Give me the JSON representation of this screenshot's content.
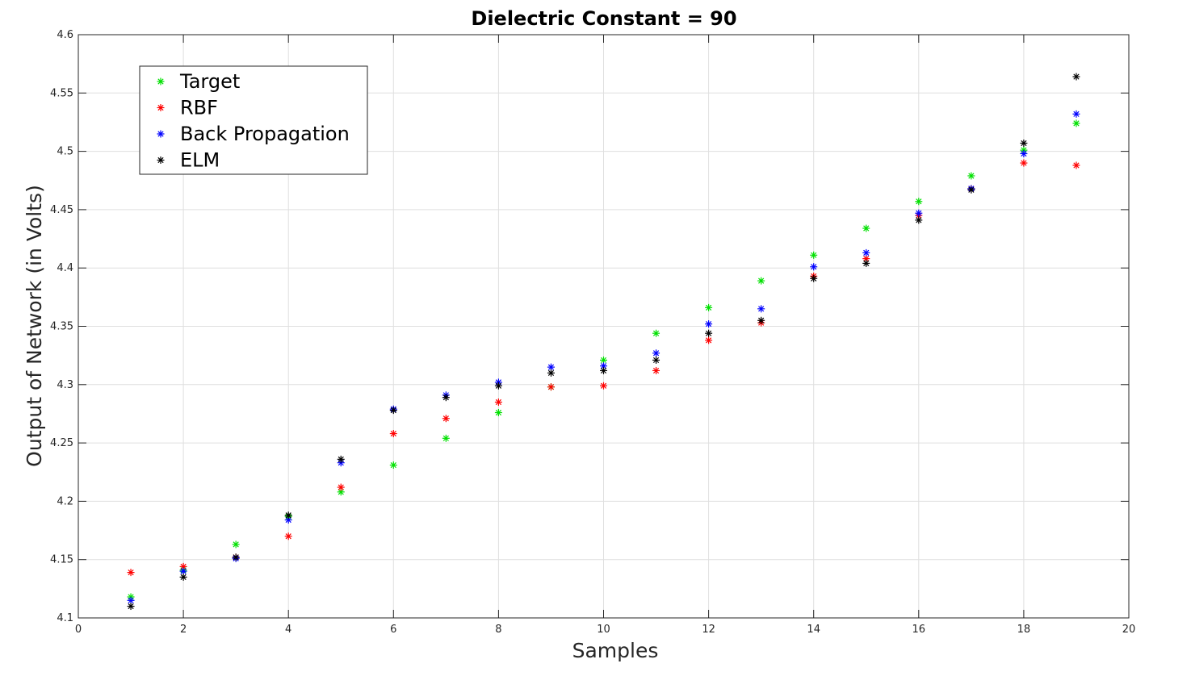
{
  "chart_data": {
    "type": "scatter",
    "title": "Dielectric Constant = 90",
    "xlabel": "Samples",
    "ylabel": "Output of Network (in Volts)",
    "xlim": [
      0,
      20
    ],
    "ylim": [
      4.1,
      4.6
    ],
    "xticks": [
      0,
      2,
      4,
      6,
      8,
      10,
      12,
      14,
      16,
      18,
      20
    ],
    "yticks": [
      4.1,
      4.15,
      4.2,
      4.25,
      4.3,
      4.35,
      4.4,
      4.45,
      4.5,
      4.55,
      4.6
    ],
    "xtick_labels": [
      "0",
      "2",
      "4",
      "6",
      "8",
      "10",
      "12",
      "14",
      "16",
      "18",
      "20"
    ],
    "ytick_labels": [
      "4.1",
      "4.15",
      "4.2",
      "4.25",
      "4.3",
      "4.35",
      "4.4",
      "4.45",
      "4.5",
      "4.55",
      "4.6"
    ],
    "grid": true,
    "legend_position": "top-left",
    "marker": "*",
    "x": [
      1,
      2,
      3,
      4,
      5,
      6,
      7,
      8,
      9,
      10,
      11,
      12,
      13,
      14,
      15,
      16,
      17,
      18,
      19
    ],
    "series": [
      {
        "name": "Target",
        "color": "#00e000",
        "values": [
          4.118,
          4.141,
          4.163,
          4.187,
          4.208,
          4.231,
          4.254,
          4.276,
          4.298,
          4.321,
          4.344,
          4.366,
          4.389,
          4.411,
          4.434,
          4.457,
          4.479,
          4.501,
          4.524
        ]
      },
      {
        "name": "RBF",
        "color": "#ff0000",
        "values": [
          4.139,
          4.144,
          4.152,
          4.17,
          4.212,
          4.258,
          4.271,
          4.285,
          4.298,
          4.299,
          4.312,
          4.338,
          4.353,
          4.393,
          4.408,
          4.445,
          4.468,
          4.49,
          4.488
        ]
      },
      {
        "name": "Back Propagation",
        "color": "#0000ff",
        "values": [
          4.115,
          4.14,
          4.151,
          4.184,
          4.233,
          4.279,
          4.291,
          4.302,
          4.315,
          4.316,
          4.327,
          4.352,
          4.365,
          4.401,
          4.413,
          4.447,
          4.468,
          4.498,
          4.532
        ]
      },
      {
        "name": "ELM",
        "color": "#000000",
        "values": [
          4.11,
          4.135,
          4.152,
          4.188,
          4.236,
          4.278,
          4.289,
          4.299,
          4.31,
          4.312,
          4.321,
          4.344,
          4.355,
          4.391,
          4.404,
          4.441,
          4.467,
          4.507,
          4.564
        ]
      }
    ]
  }
}
